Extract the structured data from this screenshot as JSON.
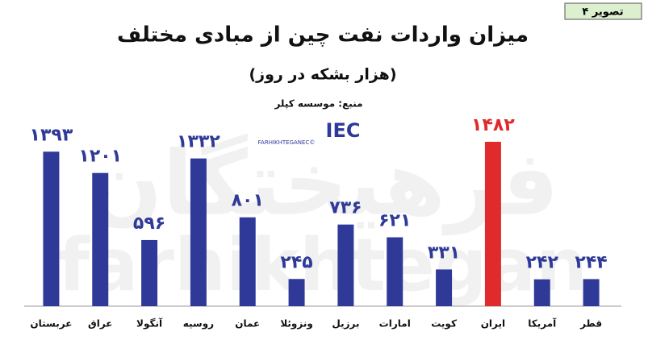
{
  "tag": "تصویر ۴",
  "brand": {
    "logo": "IEC",
    "site": "FARHIKHTEGANEC©",
    "watermark_fa": "فرهیختگان",
    "watermark_en": "farhikhtegan"
  },
  "chart_data": {
    "type": "bar",
    "title": "میزان واردات نفت چین از مبادی مختلف",
    "subtitle": "(هزار بشکه در روز)",
    "source": "منبع: موسسه کپلر",
    "categories": [
      "عربستان",
      "عراق",
      "آنگولا",
      "روسیه",
      "عمان",
      "ونزوئلا",
      "برزیل",
      "امارات",
      "کویت",
      "ایران",
      "آمریکا",
      "قطر"
    ],
    "values": [
      1393,
      1201,
      596,
      1332,
      801,
      245,
      736,
      621,
      331,
      1482,
      242,
      244
    ],
    "value_labels": [
      "۱۳۹۳",
      "۱۲۰۱",
      "۵۹۶",
      "۱۳۳۲",
      "۸۰۱",
      "۲۴۵",
      "۷۳۶",
      "۶۲۱",
      "۳۳۱",
      "۱۴۸۲",
      "۲۴۲",
      "۲۴۴"
    ],
    "colors": [
      "#2f3a98",
      "#2f3a98",
      "#2f3a98",
      "#2f3a98",
      "#2f3a98",
      "#2f3a98",
      "#2f3a98",
      "#2f3a98",
      "#2f3a98",
      "#e02a2b",
      "#2f3a98",
      "#2f3a98"
    ]
  }
}
